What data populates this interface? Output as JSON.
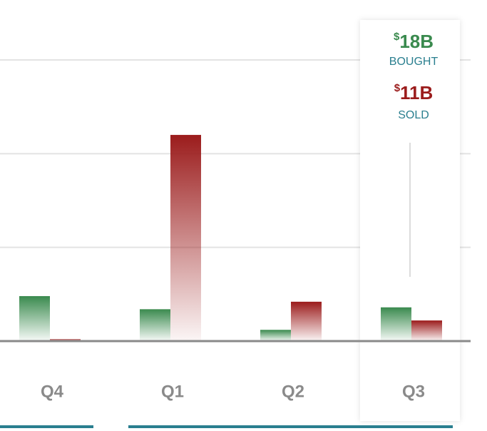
{
  "chart_data": {
    "type": "bar",
    "categories": [
      "Q4",
      "Q1",
      "Q2",
      "Q3"
    ],
    "series": [
      {
        "name": "BOUGHT",
        "color": "#3a8a4e",
        "values": [
          24,
          17,
          6,
          18
        ],
        "value_labels": [
          null,
          null,
          null,
          "$18B"
        ]
      },
      {
        "name": "SOLD",
        "color": "#9b1c1c",
        "values": [
          1,
          110,
          21,
          11
        ],
        "value_labels": [
          null,
          null,
          null,
          "$11B"
        ]
      }
    ],
    "ylim": [
      0,
      150
    ],
    "yticks": [
      0,
      50,
      100,
      150
    ],
    "grid": true,
    "highlight": 3
  }
}
